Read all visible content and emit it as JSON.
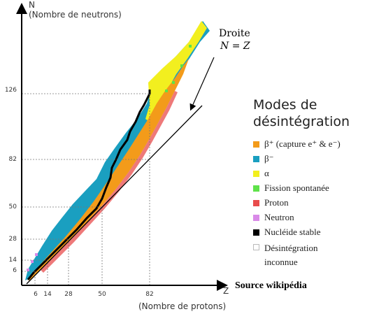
{
  "axes": {
    "y_letter": "N",
    "y_caption": "(Nombre de neutrons)",
    "x_letter": "Z",
    "x_caption": "(Nombre de protons)",
    "y_ticks": [
      "126",
      "82",
      "50",
      "28",
      "14",
      "6"
    ],
    "x_ticks": [
      "6",
      "14",
      "28",
      "50",
      "82"
    ]
  },
  "annotation": {
    "line1": "Droite",
    "line2": "N = Z"
  },
  "legend": {
    "title_line1": "Modes de",
    "title_line2": "désintégration",
    "items": [
      {
        "label": "β⁺ (capture e⁺ & e⁻)",
        "color": "#f39b1a"
      },
      {
        "label": "β⁻",
        "color": "#1a9fc0"
      },
      {
        "label": "α",
        "color": "#f2ef1f"
      },
      {
        "label": "Fission spontanée",
        "color": "#5fe24a"
      },
      {
        "label": "Proton",
        "color": "#e84c4c"
      },
      {
        "label": "Neutron",
        "color": "#d98ae8"
      },
      {
        "label": "Nucléide stable",
        "color": "#000000"
      },
      {
        "label": "Désintégration",
        "label2": "inconnue",
        "color": "#ffffff"
      }
    ]
  },
  "source": "Source wikipédia"
}
